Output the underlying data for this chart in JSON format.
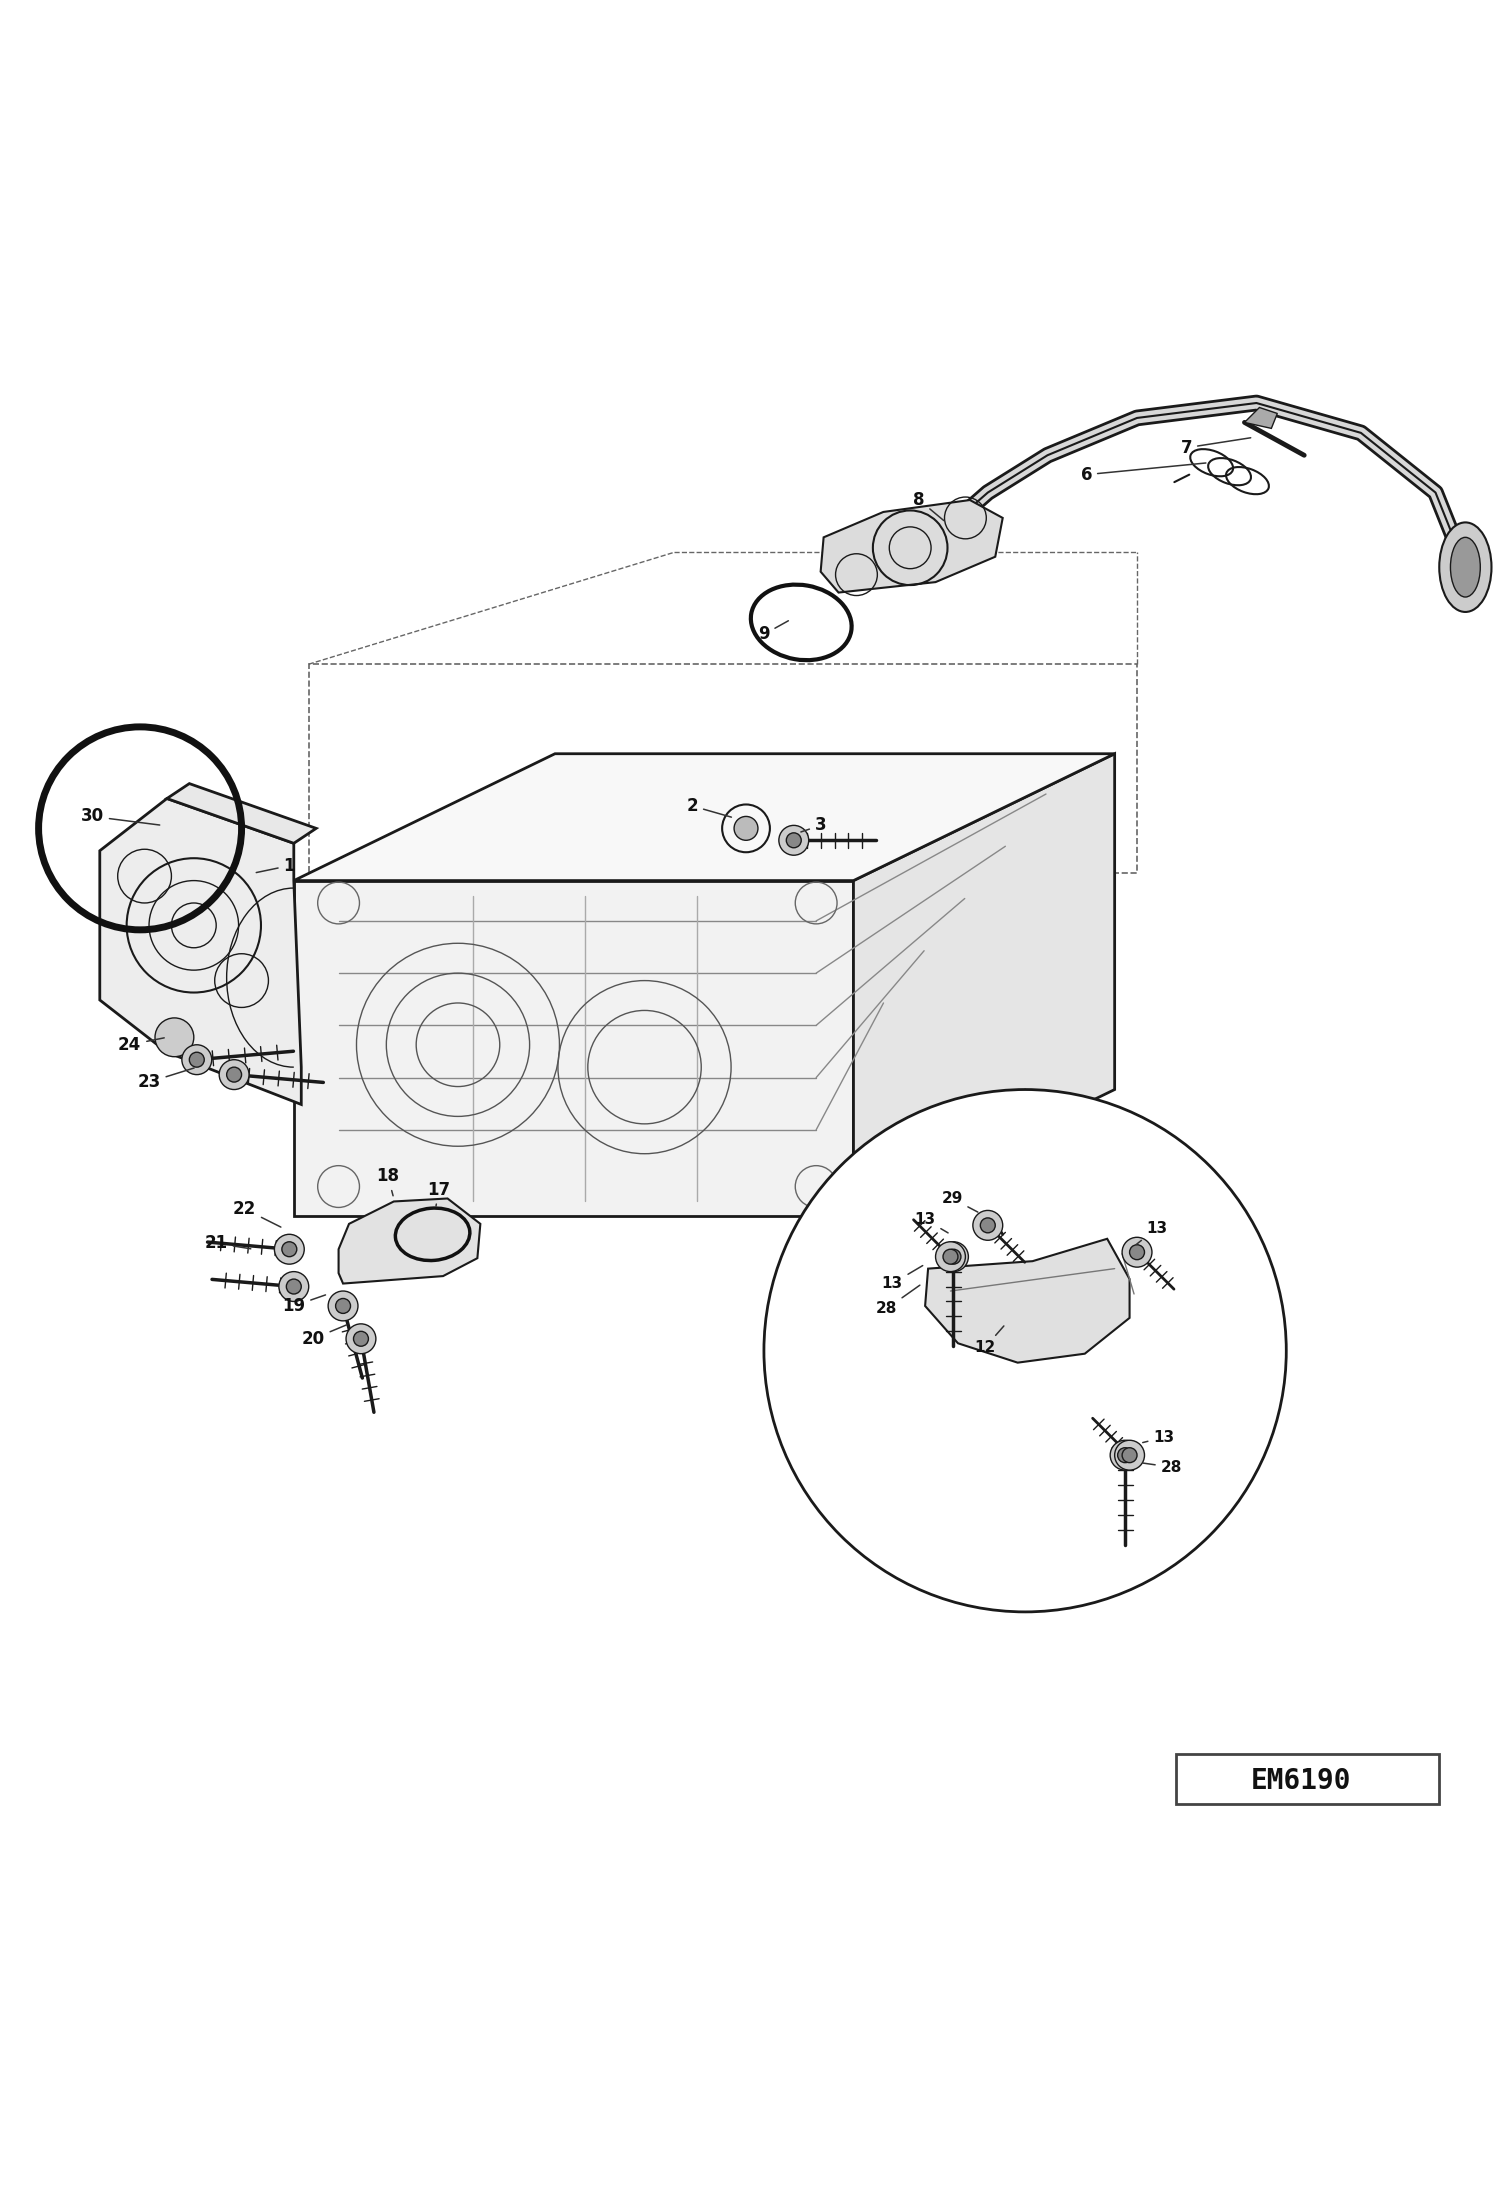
{
  "bg_color": "#ffffff",
  "line_color": "#1a1a1a",
  "label_color": "#111111",
  "em_code": "EM6190",
  "figsize": [
    14.98,
    21.94
  ],
  "dpi": 100
}
